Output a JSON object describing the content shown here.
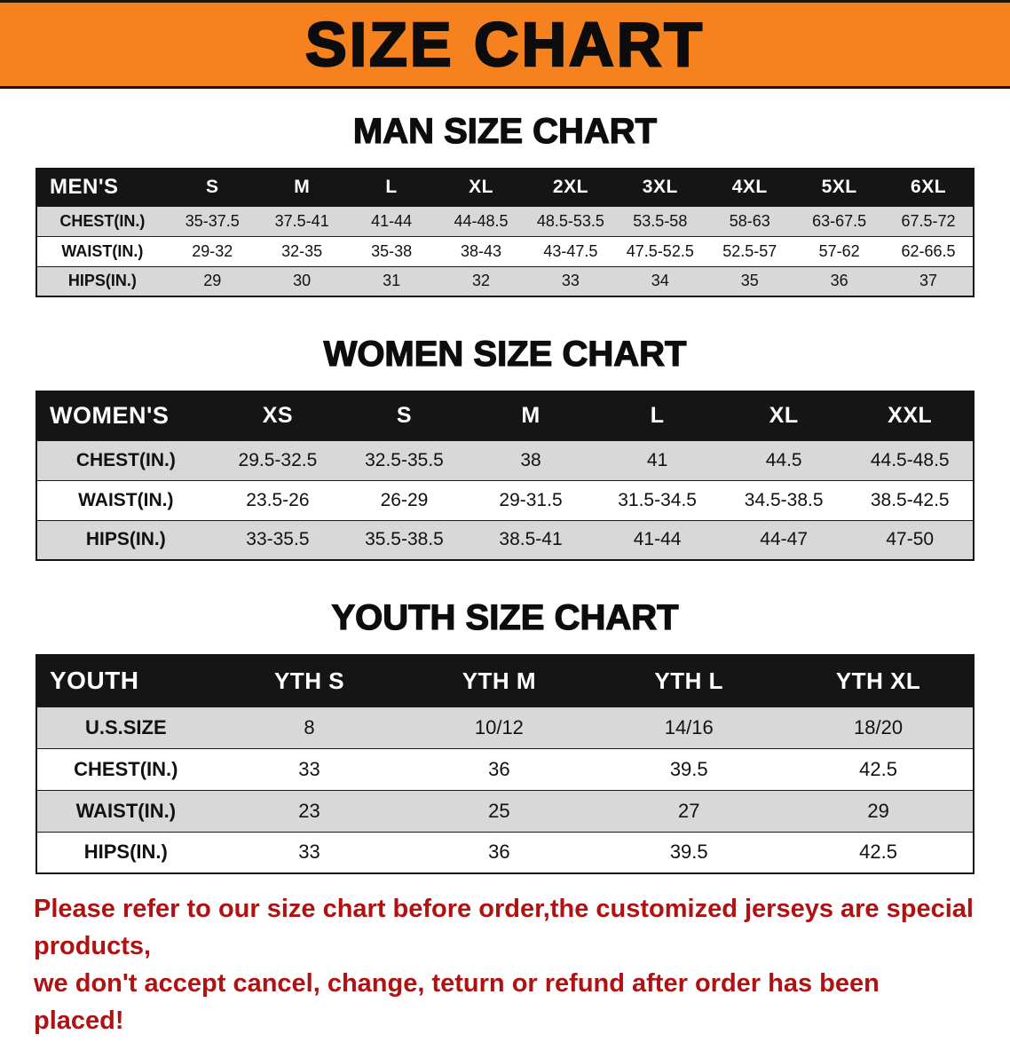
{
  "banner": {
    "title": "SIZE CHART"
  },
  "sections": [
    {
      "id": "men",
      "heading": "MAN SIZE CHART",
      "table": {
        "header": [
          "MEN'S",
          "S",
          "M",
          "L",
          "XL",
          "2XL",
          "3XL",
          "4XL",
          "5XL",
          "6XL"
        ],
        "rows": [
          [
            "CHEST(IN.)",
            "35-37.5",
            "37.5-41",
            "41-44",
            "44-48.5",
            "48.5-53.5",
            "53.5-58",
            "58-63",
            "63-67.5",
            "67.5-72"
          ],
          [
            "WAIST(IN.)",
            "29-32",
            "32-35",
            "35-38",
            "38-43",
            "43-47.5",
            "47.5-52.5",
            "52.5-57",
            "57-62",
            "62-66.5"
          ],
          [
            "HIPS(IN.)",
            "29",
            "30",
            "31",
            "32",
            "33",
            "34",
            "35",
            "36",
            "37"
          ]
        ]
      }
    },
    {
      "id": "women",
      "heading": "WOMEN SIZE CHART",
      "table": {
        "header": [
          "WOMEN'S",
          "XS",
          "S",
          "M",
          "L",
          "XL",
          "XXL"
        ],
        "rows": [
          [
            "CHEST(IN.)",
            "29.5-32.5",
            "32.5-35.5",
            "38",
            "41",
            "44.5",
            "44.5-48.5"
          ],
          [
            "WAIST(IN.)",
            "23.5-26",
            "26-29",
            "29-31.5",
            "31.5-34.5",
            "34.5-38.5",
            "38.5-42.5"
          ],
          [
            "HIPS(IN.)",
            "33-35.5",
            "35.5-38.5",
            "38.5-41",
            "41-44",
            "44-47",
            "47-50"
          ]
        ]
      }
    },
    {
      "id": "youth",
      "heading": "YOUTH SIZE CHART",
      "table": {
        "header": [
          "YOUTH",
          "YTH S",
          "YTH M",
          "YTH L",
          "YTH XL"
        ],
        "rows": [
          [
            "U.S.SIZE",
            "8",
            "10/12",
            "14/16",
            "18/20"
          ],
          [
            "CHEST(IN.)",
            "33",
            "36",
            "39.5",
            "42.5"
          ],
          [
            "WAIST(IN.)",
            "23",
            "25",
            "27",
            "29"
          ],
          [
            "HIPS(IN.)",
            "33",
            "36",
            "39.5",
            "42.5"
          ]
        ]
      }
    }
  ],
  "disclaimer": {
    "line1": "Please refer to our size chart before order,the customized jerseys are special products,",
    "line2": "we don't accept cancel, change, teturn or refund after order has been placed!"
  },
  "colors": {
    "banner_orange": "#f5821f",
    "table_header_black": "#151515",
    "row_shade_gray": "#d8d8d8",
    "disclaimer_red": "#b01212"
  }
}
